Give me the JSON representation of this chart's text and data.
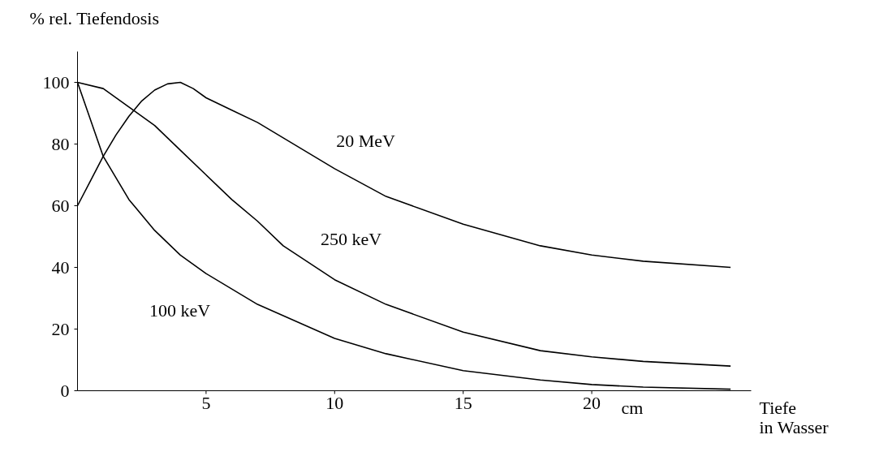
{
  "chart_data": {
    "type": "line",
    "ylabel": "% rel. Tiefendosis",
    "xlabel": "Tiefe in Wasser",
    "xlim": [
      0,
      26.2
    ],
    "ylim": [
      0,
      110
    ],
    "xticks": [
      5,
      10,
      15,
      20
    ],
    "yticks": [
      0,
      20,
      40,
      60,
      80,
      100
    ],
    "grid": false,
    "marker": "none",
    "line_style": "solid",
    "series": [
      {
        "name": "20 MeV",
        "color": "#000000",
        "x": [
          0,
          0.5,
          1,
          1.5,
          2,
          2.5,
          3,
          3.5,
          4,
          4.5,
          5,
          6,
          7,
          8,
          9,
          10,
          12,
          15,
          18,
          20,
          22,
          25.4
        ],
        "values": [
          60,
          68,
          76,
          83,
          89,
          94,
          97.5,
          99.5,
          100,
          98,
          95,
          91,
          87,
          82,
          77,
          72,
          63,
          54,
          47,
          44,
          42,
          40
        ]
      },
      {
        "name": "250 keV",
        "color": "#000000",
        "x": [
          0,
          1,
          2,
          3,
          3.5,
          4,
          5,
          6,
          7,
          8,
          10,
          12,
          15,
          18,
          20,
          22,
          25.4
        ],
        "values": [
          100,
          98,
          92,
          86,
          82,
          78,
          70,
          62,
          55,
          47,
          36,
          28,
          19,
          13,
          11,
          9.5,
          8
        ]
      },
      {
        "name": "100 keV",
        "color": "#000000",
        "x": [
          0,
          1,
          2,
          3,
          4,
          5,
          7,
          10,
          12,
          15,
          18,
          20,
          22,
          25.4
        ],
        "values": [
          100,
          76,
          62,
          52,
          44,
          38,
          28,
          17,
          12,
          6.5,
          3.5,
          2,
          1.2,
          0.5
        ]
      }
    ],
    "annotations": [
      "cm"
    ]
  }
}
